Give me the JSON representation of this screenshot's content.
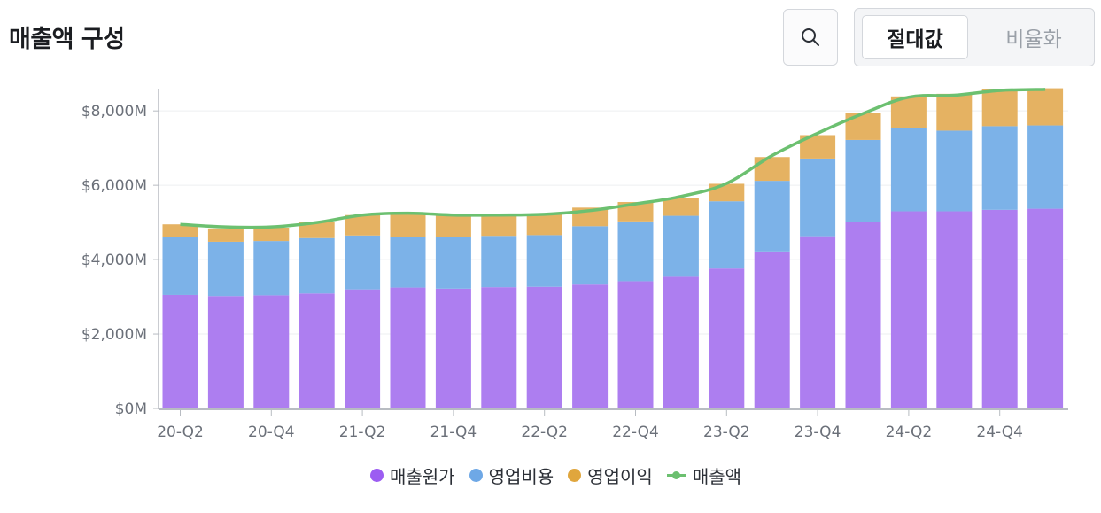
{
  "header": {
    "title": "매출액 구성",
    "toggle": {
      "absolute_label": "절대값",
      "ratio_label": "비율화",
      "selected": "절대값"
    }
  },
  "colors": {
    "cogs": "#ad7ef0",
    "opex": "#7cb2e8",
    "op_income": "#e5b262",
    "revenue_line": "#6cc070"
  },
  "legend": [
    {
      "label": "매출원가",
      "icon": "dot",
      "color": "#9c5df2"
    },
    {
      "label": "영업비용",
      "icon": "dot",
      "color": "#6ea8e6"
    },
    {
      "label": "영업이익",
      "icon": "dot",
      "color": "#e0a63d"
    },
    {
      "label": "매출액",
      "icon": "line-marker",
      "color": "#6cc070"
    }
  ],
  "chart_data": {
    "type": "bar",
    "stacked": true,
    "title": "매출액 구성",
    "ylim": [
      0,
      8600
    ],
    "yticks": [
      0,
      2000,
      4000,
      6000,
      8000
    ],
    "ytick_labels": [
      "$0M",
      "$2,000M",
      "$4,000M",
      "$6,000M",
      "$8,000M"
    ],
    "categories": [
      "20-Q2",
      "20-Q3",
      "20-Q4",
      "21-Q1",
      "21-Q2",
      "21-Q3",
      "21-Q4",
      "22-Q1",
      "22-Q2",
      "22-Q3",
      "22-Q4",
      "23-Q1",
      "23-Q2",
      "23-Q3",
      "23-Q4",
      "24-Q1",
      "24-Q2",
      "24-Q3",
      "24-Q4",
      "25-Q1"
    ],
    "xtick_labels": [
      "20-Q2",
      "",
      "20-Q4",
      "",
      "21-Q2",
      "",
      "21-Q4",
      "",
      "22-Q2",
      "",
      "22-Q4",
      "",
      "23-Q2",
      "",
      "23-Q4",
      "",
      "24-Q2",
      "",
      "24-Q4",
      ""
    ],
    "series": [
      {
        "name": "매출원가",
        "values": [
          3050,
          3020,
          3040,
          3090,
          3200,
          3250,
          3220,
          3260,
          3270,
          3330,
          3420,
          3540,
          3760,
          4220,
          4630,
          5010,
          5300,
          5300,
          5340,
          5370
        ]
      },
      {
        "name": "영업비용",
        "values": [
          1570,
          1460,
          1460,
          1490,
          1450,
          1370,
          1390,
          1380,
          1390,
          1570,
          1610,
          1640,
          1810,
          1900,
          2090,
          2210,
          2240,
          2170,
          2250,
          2240
        ]
      },
      {
        "name": "영업이익",
        "values": [
          330,
          360,
          360,
          430,
          550,
          620,
          580,
          580,
          570,
          500,
          520,
          480,
          470,
          640,
          630,
          720,
          850,
          990,
          990,
          1000
        ]
      }
    ],
    "line_series": {
      "name": "매출액",
      "values": [
        4950,
        4880,
        4880,
        5000,
        5200,
        5250,
        5200,
        5200,
        5220,
        5320,
        5500,
        5700,
        6050,
        6800,
        7400,
        7930,
        8370,
        8420,
        8550,
        8580
      ]
    }
  }
}
